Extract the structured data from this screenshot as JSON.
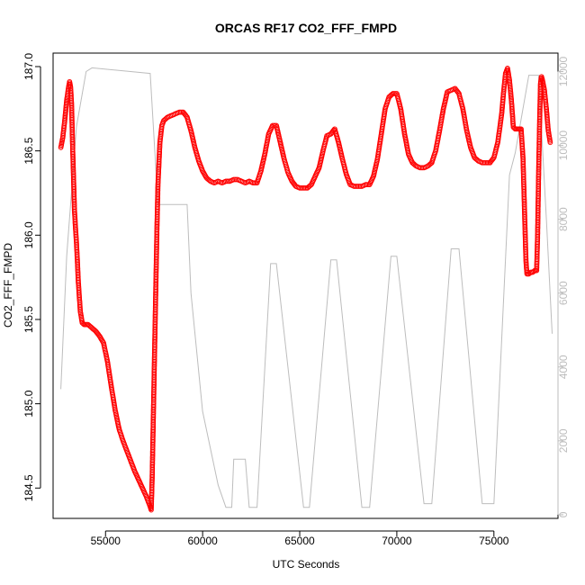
{
  "chart_data": {
    "type": "scatter",
    "title": "ORCAS RF17 CO2_FFF_FMPD",
    "xlabel": "UTC Seconds",
    "ylabel": "CO2_FFF_FMPD",
    "xlim": [
      52300,
      78300
    ],
    "ylim": [
      184.32,
      187.08
    ],
    "y2lim": [
      -100,
      12500
    ],
    "x_ticks": [
      55000,
      60000,
      65000,
      70000,
      75000
    ],
    "y_ticks": [
      184.5,
      185.0,
      185.5,
      186.0,
      186.5,
      187.0
    ],
    "y2_ticks": [
      0,
      2000,
      4000,
      6000,
      8000,
      10000,
      12000
    ],
    "colors": {
      "points": "#ff0000",
      "altitude": "#bdbdbd",
      "axis": "#000000"
    },
    "series": [
      {
        "marker": "open-circle",
        "color": "#ff0000",
        "points": [
          [
            52700,
            186.52
          ],
          [
            52800,
            186.58
          ],
          [
            52900,
            186.68
          ],
          [
            53000,
            186.8
          ],
          [
            53100,
            186.88
          ],
          [
            53150,
            186.91
          ],
          [
            53200,
            186.88
          ],
          [
            53250,
            186.78
          ],
          [
            53300,
            186.55
          ],
          [
            53350,
            186.35
          ],
          [
            53400,
            186.15
          ],
          [
            53450,
            186.05
          ],
          [
            53500,
            185.96
          ],
          [
            53550,
            185.85
          ],
          [
            53600,
            185.72
          ],
          [
            53700,
            185.55
          ],
          [
            53800,
            185.48
          ],
          [
            53900,
            185.47
          ],
          [
            54000,
            185.47
          ],
          [
            54100,
            185.47
          ],
          [
            54200,
            185.46
          ],
          [
            54300,
            185.45
          ],
          [
            54500,
            185.43
          ],
          [
            54700,
            185.4
          ],
          [
            54900,
            185.36
          ],
          [
            55100,
            185.25
          ],
          [
            55300,
            185.1
          ],
          [
            55500,
            184.96
          ],
          [
            55700,
            184.85
          ],
          [
            55900,
            184.78
          ],
          [
            56100,
            184.72
          ],
          [
            56300,
            184.66
          ],
          [
            56500,
            184.6
          ],
          [
            56700,
            184.55
          ],
          [
            56900,
            184.5
          ],
          [
            57100,
            184.45
          ],
          [
            57200,
            184.42
          ],
          [
            57300,
            184.39
          ],
          [
            57350,
            184.37
          ],
          [
            57400,
            184.55
          ],
          [
            57450,
            184.85
          ],
          [
            57500,
            185.15
          ],
          [
            57550,
            185.45
          ],
          [
            57600,
            185.75
          ],
          [
            57650,
            186.05
          ],
          [
            57700,
            186.3
          ],
          [
            57800,
            186.55
          ],
          [
            57900,
            186.65
          ],
          [
            58000,
            186.68
          ],
          [
            58200,
            186.7
          ],
          [
            58400,
            186.71
          ],
          [
            58600,
            186.72
          ],
          [
            58800,
            186.73
          ],
          [
            59000,
            186.73
          ],
          [
            59200,
            186.7
          ],
          [
            59400,
            186.62
          ],
          [
            59600,
            186.52
          ],
          [
            59800,
            186.44
          ],
          [
            60000,
            186.38
          ],
          [
            60200,
            186.34
          ],
          [
            60400,
            186.32
          ],
          [
            60600,
            186.31
          ],
          [
            60800,
            186.32
          ],
          [
            61000,
            186.31
          ],
          [
            61200,
            186.32
          ],
          [
            61400,
            186.32
          ],
          [
            61600,
            186.33
          ],
          [
            61800,
            186.33
          ],
          [
            62000,
            186.32
          ],
          [
            62200,
            186.31
          ],
          [
            62400,
            186.32
          ],
          [
            62600,
            186.31
          ],
          [
            62800,
            186.31
          ],
          [
            63000,
            186.38
          ],
          [
            63200,
            186.48
          ],
          [
            63400,
            186.6
          ],
          [
            63600,
            186.65
          ],
          [
            63800,
            186.65
          ],
          [
            64000,
            186.55
          ],
          [
            64200,
            186.45
          ],
          [
            64400,
            186.37
          ],
          [
            64600,
            186.32
          ],
          [
            64800,
            186.29
          ],
          [
            65000,
            186.28
          ],
          [
            65200,
            186.28
          ],
          [
            65400,
            186.28
          ],
          [
            65600,
            186.3
          ],
          [
            65800,
            186.35
          ],
          [
            66000,
            186.4
          ],
          [
            66200,
            186.5
          ],
          [
            66400,
            186.59
          ],
          [
            66600,
            186.6
          ],
          [
            66800,
            186.63
          ],
          [
            67000,
            186.55
          ],
          [
            67200,
            186.45
          ],
          [
            67400,
            186.36
          ],
          [
            67600,
            186.3
          ],
          [
            67800,
            186.29
          ],
          [
            68000,
            186.29
          ],
          [
            68200,
            186.29
          ],
          [
            68400,
            186.3
          ],
          [
            68600,
            186.3
          ],
          [
            68800,
            186.35
          ],
          [
            69000,
            186.45
          ],
          [
            69200,
            186.6
          ],
          [
            69400,
            186.75
          ],
          [
            69600,
            186.82
          ],
          [
            69800,
            186.84
          ],
          [
            70000,
            186.84
          ],
          [
            70200,
            186.75
          ],
          [
            70400,
            186.6
          ],
          [
            70600,
            186.48
          ],
          [
            70800,
            186.43
          ],
          [
            71000,
            186.41
          ],
          [
            71200,
            186.4
          ],
          [
            71400,
            186.4
          ],
          [
            71600,
            186.41
          ],
          [
            71800,
            186.43
          ],
          [
            72000,
            186.5
          ],
          [
            72200,
            186.62
          ],
          [
            72400,
            186.75
          ],
          [
            72600,
            186.85
          ],
          [
            72800,
            186.86
          ],
          [
            73000,
            186.87
          ],
          [
            73200,
            186.84
          ],
          [
            73400,
            186.75
          ],
          [
            73600,
            186.62
          ],
          [
            73800,
            186.52
          ],
          [
            74000,
            186.46
          ],
          [
            74200,
            186.44
          ],
          [
            74400,
            186.43
          ],
          [
            74600,
            186.43
          ],
          [
            74800,
            186.43
          ],
          [
            75000,
            186.46
          ],
          [
            75200,
            186.55
          ],
          [
            75400,
            186.72
          ],
          [
            75500,
            186.85
          ],
          [
            75600,
            186.96
          ],
          [
            75700,
            186.99
          ],
          [
            75800,
            186.92
          ],
          [
            75900,
            186.8
          ],
          [
            76000,
            186.64
          ],
          [
            76100,
            186.63
          ],
          [
            76200,
            186.63
          ],
          [
            76300,
            186.63
          ],
          [
            76400,
            186.63
          ],
          [
            76500,
            186.45
          ],
          [
            76550,
            186.25
          ],
          [
            76600,
            186.05
          ],
          [
            76650,
            185.85
          ],
          [
            76700,
            185.77
          ],
          [
            76800,
            185.77
          ],
          [
            76900,
            185.78
          ],
          [
            77000,
            185.78
          ],
          [
            77100,
            185.79
          ],
          [
            77200,
            185.79
          ],
          [
            77250,
            186.0
          ],
          [
            77300,
            186.35
          ],
          [
            77350,
            186.65
          ],
          [
            77400,
            186.9
          ],
          [
            77450,
            186.94
          ],
          [
            77500,
            186.92
          ],
          [
            77600,
            186.86
          ],
          [
            77700,
            186.75
          ],
          [
            77800,
            186.62
          ],
          [
            77900,
            186.55
          ]
        ]
      },
      {
        "axis": "right",
        "color": "#bdbdbd",
        "line": [
          [
            52700,
            3400
          ],
          [
            53000,
            7000
          ],
          [
            53500,
            10500
          ],
          [
            54000,
            12000
          ],
          [
            54300,
            12100
          ],
          [
            57300,
            11950
          ],
          [
            57700,
            8400
          ],
          [
            59200,
            8400
          ],
          [
            59400,
            6000
          ],
          [
            60000,
            2800
          ],
          [
            60800,
            800
          ],
          [
            61200,
            200
          ],
          [
            61500,
            200
          ],
          [
            61600,
            1500
          ],
          [
            62200,
            1500
          ],
          [
            62400,
            200
          ],
          [
            62800,
            200
          ],
          [
            63500,
            6800
          ],
          [
            63800,
            6800
          ],
          [
            65200,
            200
          ],
          [
            65500,
            200
          ],
          [
            66600,
            6900
          ],
          [
            66900,
            6900
          ],
          [
            68200,
            200
          ],
          [
            68600,
            200
          ],
          [
            69700,
            7000
          ],
          [
            70000,
            7000
          ],
          [
            71400,
            300
          ],
          [
            71800,
            300
          ],
          [
            72800,
            7200
          ],
          [
            73200,
            7200
          ],
          [
            74400,
            300
          ],
          [
            75000,
            300
          ],
          [
            75800,
            9200
          ],
          [
            76100,
            9800
          ],
          [
            76800,
            11900
          ],
          [
            77300,
            11900
          ],
          [
            77700,
            8000
          ],
          [
            78000,
            4900
          ]
        ]
      }
    ]
  }
}
